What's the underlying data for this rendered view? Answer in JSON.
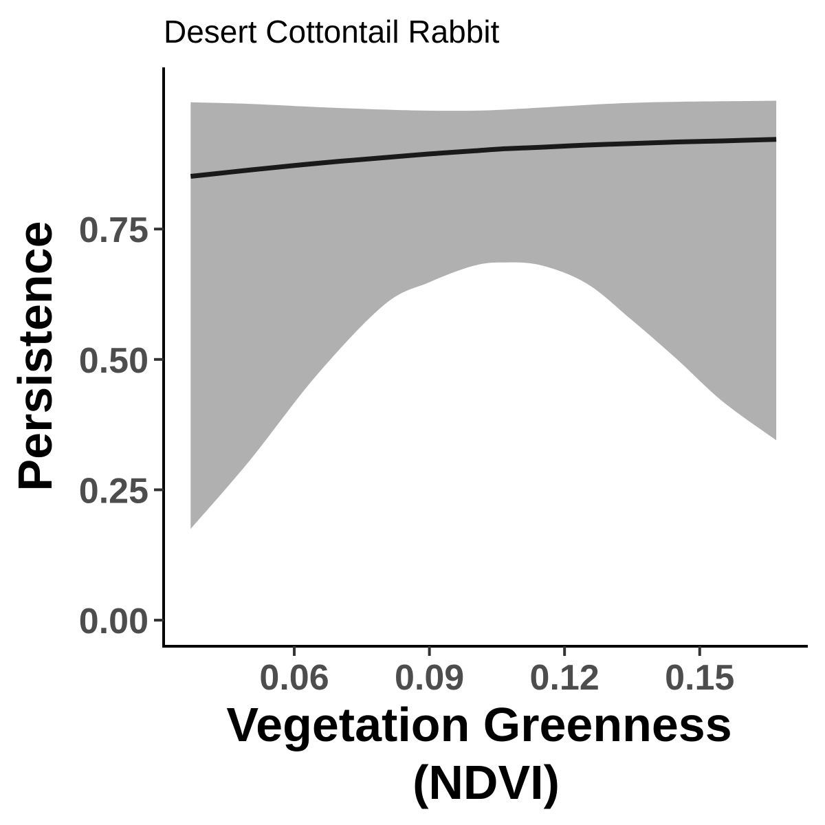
{
  "chart_data": {
    "type": "line",
    "title": "Desert Cottontail Rabbit",
    "xlabel_lines": [
      "Vegetation Greenness",
      "(NDVI)"
    ],
    "ylabel": "Persistence",
    "x_ticks": [
      0.06,
      0.09,
      0.12,
      0.15
    ],
    "x_tick_labels": [
      "0.06",
      "0.09",
      "0.12",
      "0.15"
    ],
    "y_ticks": [
      0.0,
      0.25,
      0.5,
      0.75
    ],
    "y_tick_labels": [
      "0.00",
      "0.25",
      "0.50",
      "0.75"
    ],
    "xlim": [
      0.031,
      0.174
    ],
    "ylim": [
      -0.05,
      1.06
    ],
    "grid": false,
    "legend": "none",
    "colors": {
      "line": "#1a1a1a",
      "ribbon": "#b0b0b0",
      "axis": "#000000"
    },
    "series": [
      {
        "x": [
          0.037,
          0.05,
          0.065,
          0.08,
          0.09,
          0.1,
          0.107,
          0.115,
          0.125,
          0.135,
          0.145,
          0.155,
          0.167
        ],
        "y": [
          0.851,
          0.863,
          0.876,
          0.887,
          0.894,
          0.9,
          0.904,
          0.907,
          0.911,
          0.914,
          0.917,
          0.919,
          0.922
        ],
        "lower": [
          0.175,
          0.305,
          0.47,
          0.605,
          0.648,
          0.68,
          0.686,
          0.68,
          0.645,
          0.575,
          0.5,
          0.42,
          0.345
        ],
        "upper": [
          0.993,
          0.99,
          0.984,
          0.979,
          0.977,
          0.977,
          0.979,
          0.983,
          0.988,
          0.992,
          0.994,
          0.995,
          0.996
        ]
      }
    ]
  }
}
